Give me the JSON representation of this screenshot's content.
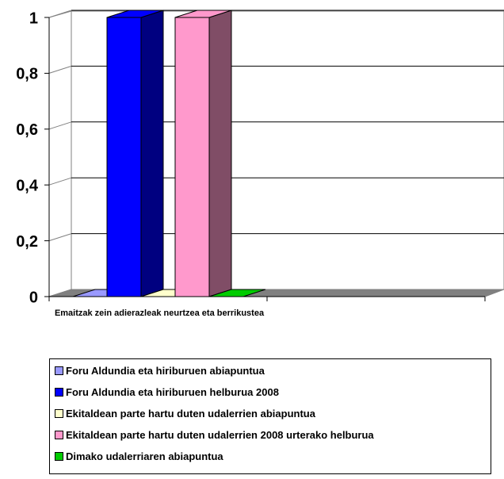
{
  "chart_data": {
    "type": "bar3d",
    "categories": [
      "Emaitzak zein adierazleak neurtzea eta berrikustea",
      null
    ],
    "series": [
      {
        "name": "Foru Aldundia eta hiriburuen abiapuntua",
        "color": "#9999ff",
        "values": [
          0,
          null
        ]
      },
      {
        "name": "Foru Aldundia eta hiriburuen helburua 2008",
        "color": "#0000ff",
        "values": [
          1,
          null
        ]
      },
      {
        "name": "Ekitaldean parte hartu duten udalerrien abiapuntua",
        "color": "#ffffcc",
        "values": [
          0,
          null
        ]
      },
      {
        "name": "Ekitaldean parte hartu duten udalerrien 2008 urterako helburua",
        "color": "#ff99cc",
        "values": [
          1,
          null
        ]
      },
      {
        "name": "Dimako udalerriaren abiapuntua",
        "color": "#00cc00",
        "values": [
          0,
          null
        ]
      }
    ],
    "ylim": [
      0,
      1
    ],
    "yticks": [
      0,
      {
        "value": 0.2,
        "label": "0,2"
      },
      {
        "value": 0.4,
        "label": "0,4"
      },
      {
        "value": 0.6,
        "label": "0,6"
      },
      {
        "value": 0.8,
        "label": "0,8"
      },
      1
    ],
    "grid": true
  }
}
